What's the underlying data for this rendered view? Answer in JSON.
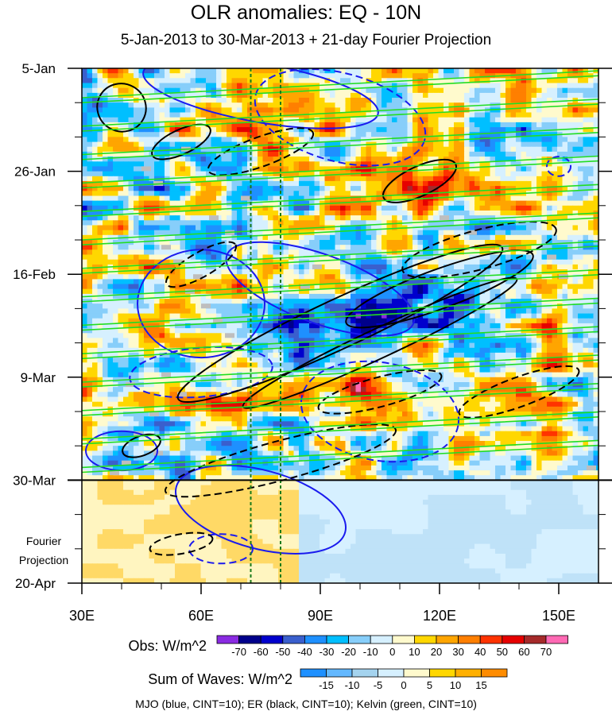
{
  "chart_data": {
    "type": "heatmap",
    "title": "OLR anomalies: EQ - 10N",
    "subtitle": "5-Jan-2013 to 30-Mar-2013 + 21-day Fourier Projection",
    "x_ticks": [
      {
        "value": 30,
        "label": "30E"
      },
      {
        "value": 60,
        "label": "60E"
      },
      {
        "value": 90,
        "label": "90E"
      },
      {
        "value": 120,
        "label": "120E"
      },
      {
        "value": 150,
        "label": "150E"
      }
    ],
    "xlim": [
      30,
      160
    ],
    "y_ticks": [
      {
        "day": 0,
        "label": "5-Jan"
      },
      {
        "day": 21,
        "label": "26-Jan"
      },
      {
        "day": 42,
        "label": "16-Feb"
      },
      {
        "day": 63,
        "label": "9-Mar"
      },
      {
        "day": 84,
        "label": "30-Mar"
      },
      {
        "day": 105,
        "label": "20-Apr"
      }
    ],
    "projection_start_label": "30-Mar",
    "projection_label_1": "Fourier",
    "projection_label_2": "Projection",
    "reference_longitudes": [
      72.5,
      80
    ],
    "obs_colorbar": {
      "label": "Obs: W/m^2",
      "levels": [
        "-70",
        "-60",
        "-50",
        "-40",
        "-30",
        "-20",
        "-10",
        "0",
        "10",
        "20",
        "30",
        "40",
        "50",
        "60",
        "70"
      ],
      "colors": [
        "#8a2be2",
        "#00008b",
        "#0000cd",
        "#3a5fcd",
        "#1e90ff",
        "#00bfff",
        "#87cefa",
        "#d6f0ff",
        "#fffacd",
        "#ffd700",
        "#ffa500",
        "#ff7f00",
        "#ff3300",
        "#e60000",
        "#a52a2a",
        "#ff69b4"
      ]
    },
    "waves_colorbar": {
      "label": "Sum of Waves: W/m^2",
      "levels": [
        "-15",
        "-10",
        "-5",
        "0",
        "5",
        "10",
        "15"
      ],
      "colors": [
        "#1e90ff",
        "#63b8ff",
        "#a4d3ee",
        "#d6f0ff",
        "#fffacd",
        "#ffd700",
        "#ffb000",
        "#ff8c00"
      ]
    },
    "contours": {
      "mjo_color": "#1a1aee",
      "er_color": "#000000",
      "kelvin_color": "#22dd22"
    },
    "note": "MJO (blue, CINT=10); ER (black, CINT=10); Kelvin (green, CINT=10)"
  }
}
